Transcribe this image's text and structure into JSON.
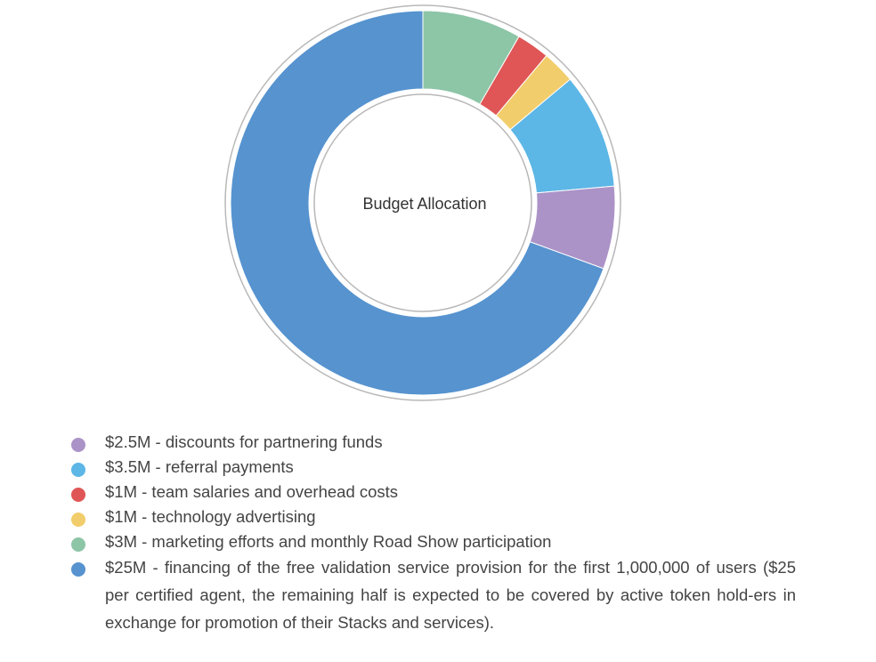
{
  "chart_data": {
    "type": "pie",
    "title": "Budget Allocation",
    "categories": [
      "$3M - marketing efforts and monthly Road Show participation",
      "$1M - team salaries and overhead costs",
      "$1M - technology advertising",
      "$3.5M - referral payments",
      "$2.5M - discounts for partnering funds",
      "$25M - financing of the free validation service provision for the first 1,000,000 of users ($25 per certified agent, the remaining half is expected to be covered by active token hold-ers in exchange for promotion of their Stacks and services)."
    ],
    "values": [
      3,
      1,
      1,
      3.5,
      2.5,
      25
    ],
    "colors": [
      "#8dc5a7",
      "#e05656",
      "#f2cd6b",
      "#5cb6e6",
      "#ab93c7",
      "#5693cf"
    ],
    "donut": true
  },
  "legend": [
    {
      "label": "$2.5M - discounts for partnering funds",
      "color": "#ab93c7"
    },
    {
      "label": "$3.5M - referral payments",
      "color": "#5cb6e6"
    },
    {
      "label": "$1M - team salaries and overhead costs",
      "color": "#e05656"
    },
    {
      "label": "$1M - technology advertising",
      "color": "#f2cd6b"
    },
    {
      "label": "$3M - marketing efforts and monthly Road Show participation",
      "color": "#8dc5a7"
    },
    {
      "label": "$25M - financing of the free validation service provision for the first 1,000,000 of users ($25 per certified agent, the remaining half is expected to be covered by active token hold-ers in exchange for promotion of their Stacks and services).",
      "color": "#5693cf"
    }
  ]
}
